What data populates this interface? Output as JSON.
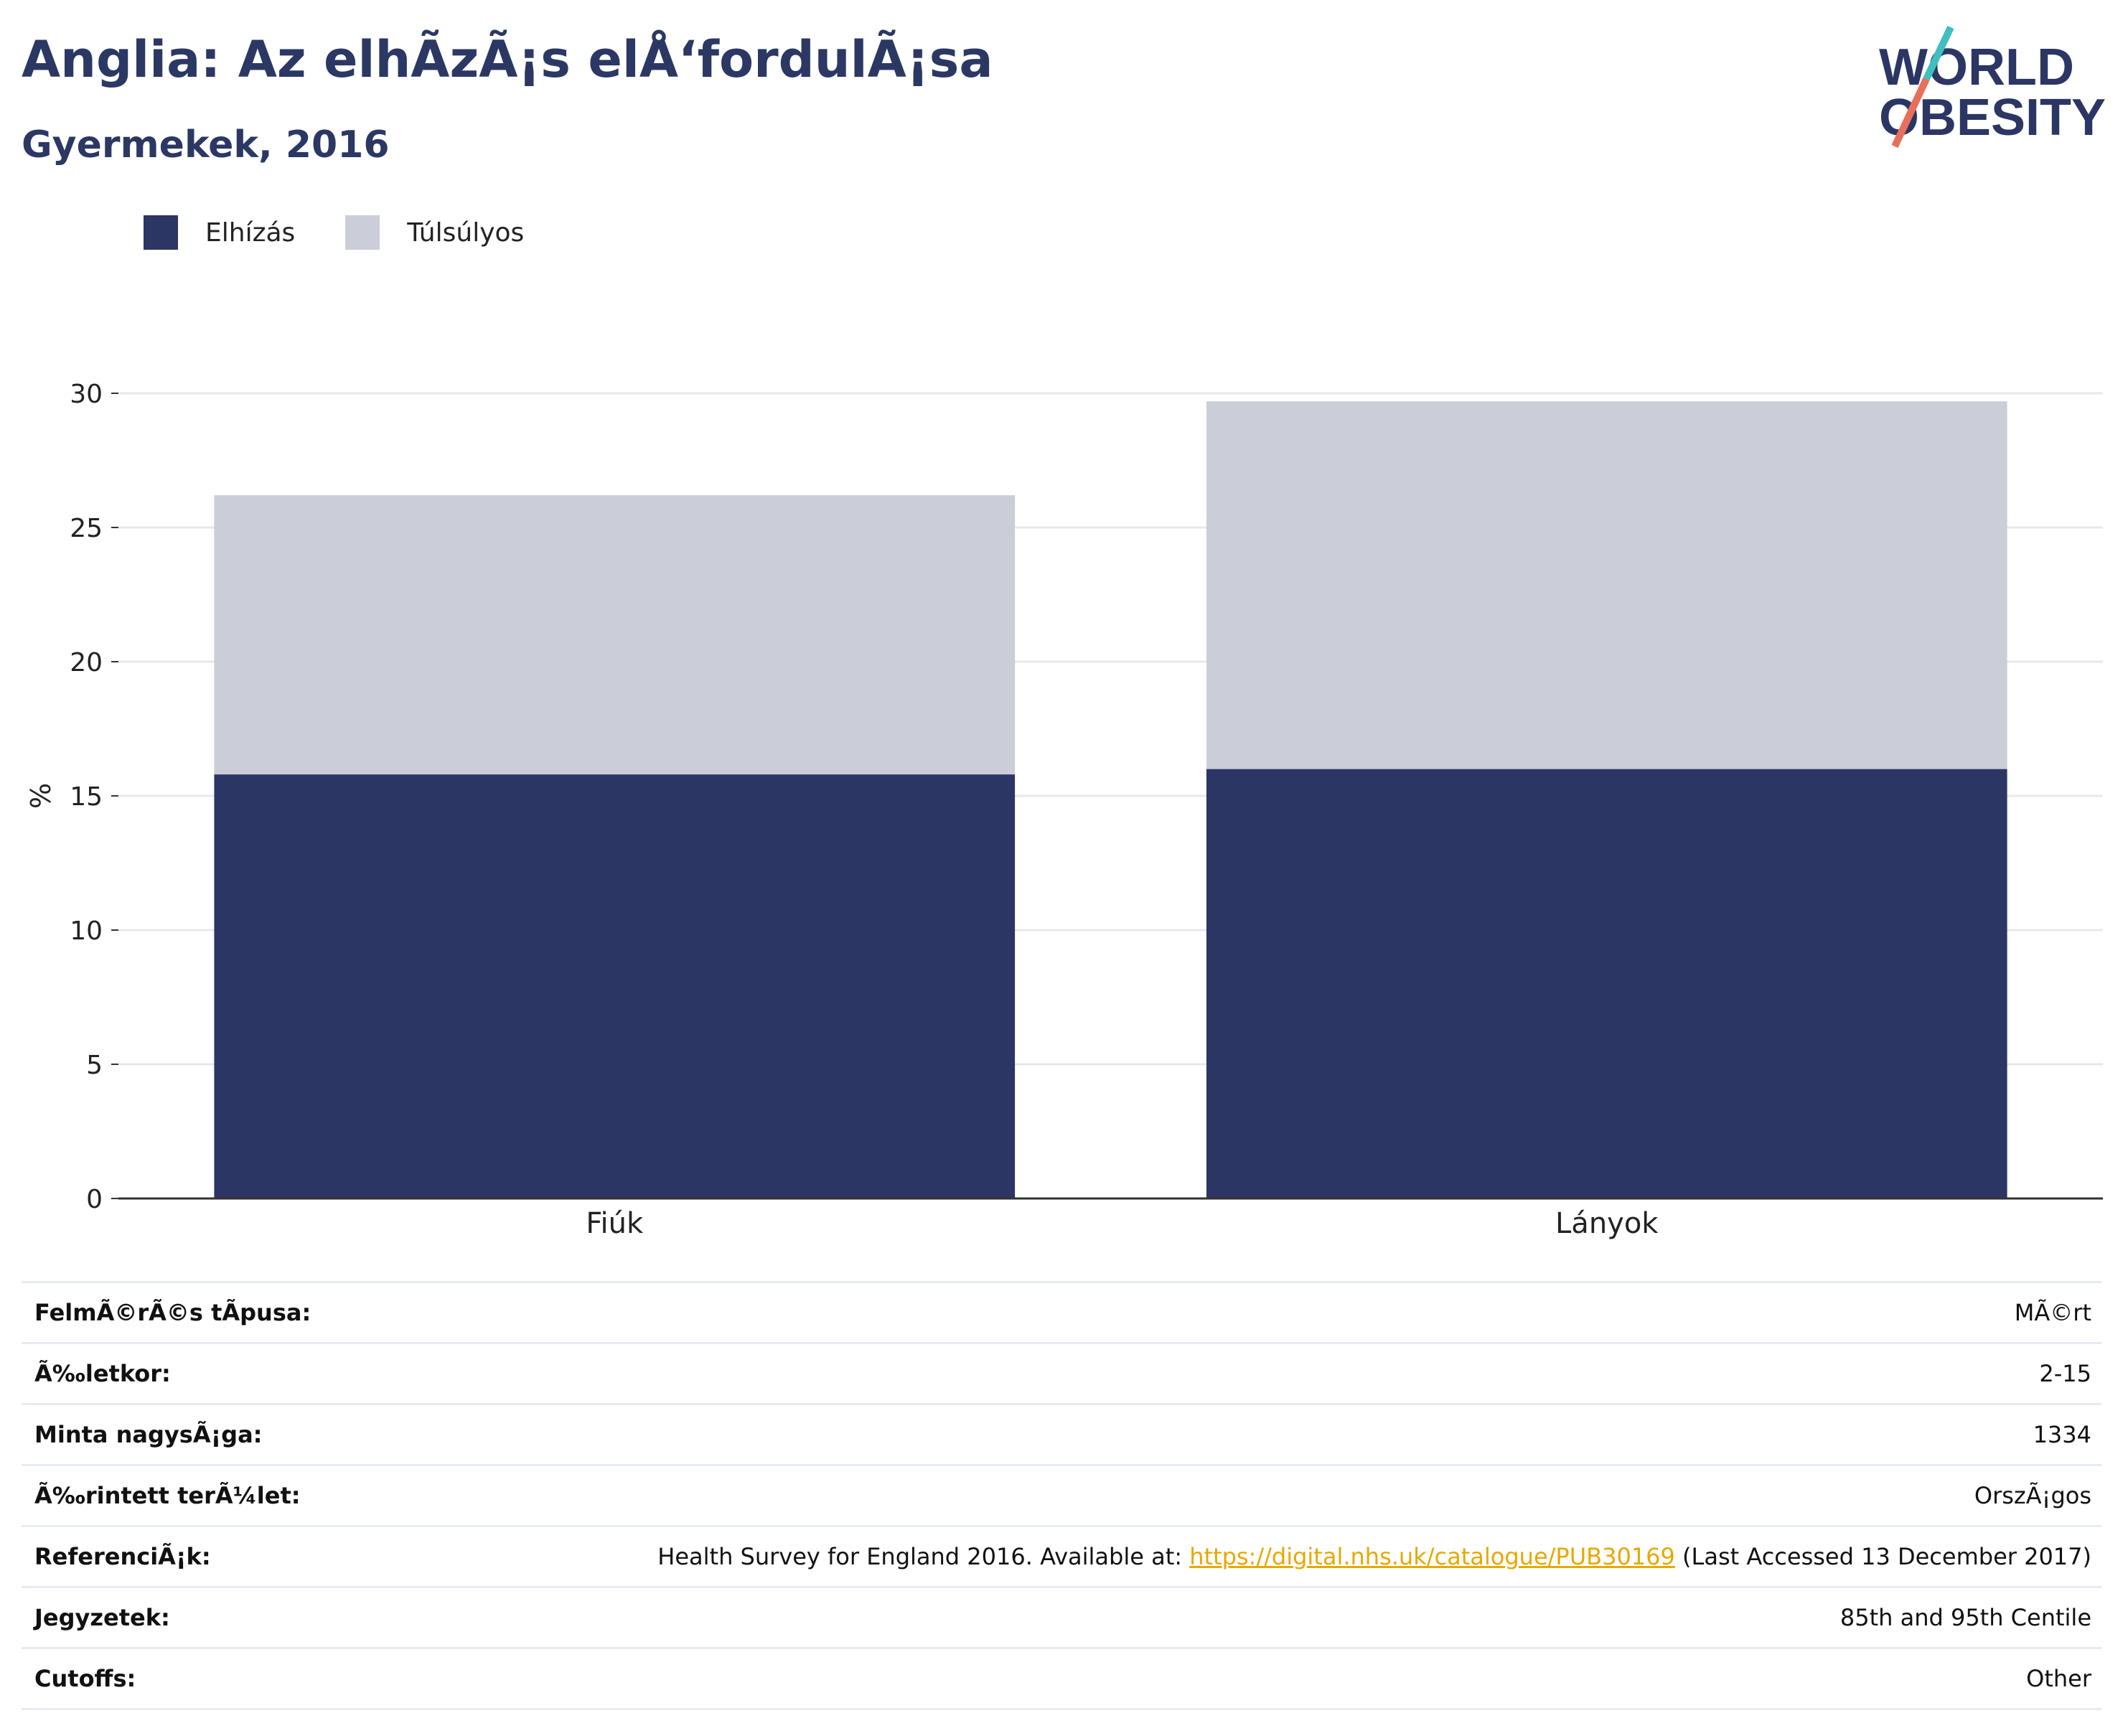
{
  "header": {
    "title": "Anglia: Az elhÃzÃ¡s elÅ‘fordulÃ¡sa",
    "subtitle": "Gyermekek, 2016"
  },
  "logo": {
    "line1": "WORLD",
    "line2": "OBESITY"
  },
  "colors": {
    "obesity": "#2b3664",
    "overweight": "#cbcdd8",
    "title": "#2b3864",
    "link": "#e8a800"
  },
  "legend": [
    {
      "label": "Elhízás",
      "color": "#2b3664"
    },
    {
      "label": "Túlsúlyos",
      "color": "#cbcdd8"
    }
  ],
  "chart_data": {
    "type": "bar",
    "stacked": true,
    "categories": [
      "Fiúk",
      "Lányok"
    ],
    "series": [
      {
        "name": "Elhízás",
        "values": [
          15.8,
          16.0
        ]
      },
      {
        "name": "Túlsúlyos",
        "values": [
          10.4,
          13.7
        ]
      }
    ],
    "totals": [
      26.2,
      29.7
    ],
    "ylabel": "%",
    "ylim": [
      0,
      30
    ],
    "yticks": [
      "0",
      "5",
      "10",
      "15",
      "20",
      "25",
      "30"
    ],
    "grid": true,
    "legend_position": "top-left"
  },
  "meta": {
    "survey_type": {
      "key": "FelmÃ©rÃ©s tÃpusa:",
      "value": "MÃ©rt"
    },
    "age": {
      "key": "Ã‰letkor:",
      "value": "2-15"
    },
    "sample": {
      "key": "Minta nagysÃ¡ga:",
      "value": "1334"
    },
    "area": {
      "key": "Ã‰rintett terÃ¼let:",
      "value": "OrszÃ¡gos"
    },
    "references": {
      "key": "ReferenciÃ¡k:",
      "prefix": "Health Survey for England 2016. Available at: ",
      "link": "https://digital.nhs.uk/catalogue/PUB30169",
      "suffix": " (Last Accessed 13 December 2017)"
    },
    "notes": {
      "key": "Jegyzetek:",
      "value": "85th and 95th Centile"
    },
    "cutoffs": {
      "key": "Cutoffs:",
      "value": "Other"
    }
  }
}
